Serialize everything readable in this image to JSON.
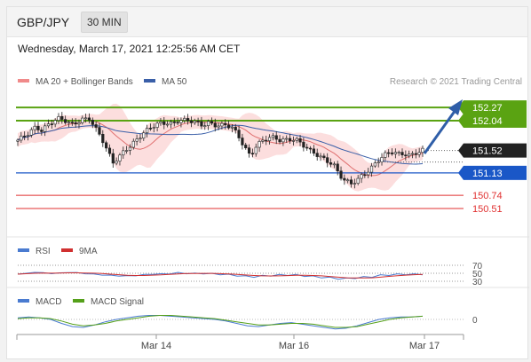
{
  "header": {
    "symbol": "GBP/JPY",
    "timeframe": "30 MIN",
    "datetime": "Wednesday, March 17, 2021 12:25:56 AM CET"
  },
  "main_panel": {
    "legend": [
      {
        "label": "MA 20 + Bollinger Bands",
        "color": "#f08a8a"
      },
      {
        "label": "MA 50",
        "color": "#3a5fa8"
      }
    ],
    "attribution": "Research © 2021 Trading Central"
  },
  "colors": {
    "resistance": "#5aa312",
    "support": "#1a57c7",
    "lower_support": "#e03030",
    "current": "#222222",
    "arrow": "#2f5ea8",
    "candle_up": "#222222",
    "candle_down": "#222222",
    "bollinger_fill": "#fbd3d3",
    "ma20": "#e07070",
    "ma50": "#3a5fa8",
    "rsi": "#4a7bd0",
    "rsi_ma": "#d03030",
    "macd": "#4a7bd0",
    "macd_signal": "#55a01a"
  },
  "rsi_panel": {
    "legend": [
      {
        "label": "RSI",
        "color": "#4a7bd0"
      },
      {
        "label": "9MA",
        "color": "#d03030"
      }
    ],
    "levels": [
      "70",
      "50",
      "30"
    ]
  },
  "macd_panel": {
    "legend": [
      {
        "label": "MACD",
        "color": "#4a7bd0"
      },
      {
        "label": "MACD Signal",
        "color": "#55a01a"
      }
    ],
    "level": "0"
  },
  "chart_data": {
    "type": "candlestick",
    "x_ticks": [
      "Mar 14",
      "Mar 16",
      "Mar 17"
    ],
    "y_range": [
      150.2,
      152.55
    ],
    "levels": [
      {
        "value": 152.27,
        "label": "152.27",
        "kind": "resistance"
      },
      {
        "value": 152.04,
        "label": "152.04",
        "kind": "resistance"
      },
      {
        "value": 151.52,
        "label": "151.52",
        "kind": "current"
      },
      {
        "value": 151.13,
        "label": "151.13",
        "kind": "support"
      },
      {
        "value": 150.74,
        "label": "150.74",
        "kind": "lower_support"
      },
      {
        "value": 150.51,
        "label": "150.51",
        "kind": "lower_support"
      }
    ],
    "close_path": [
      151.7,
      151.75,
      151.82,
      151.92,
      151.88,
      151.98,
      152.05,
      152.08,
      152.02,
      151.95,
      152.01,
      152.08,
      152.1,
      151.92,
      151.75,
      151.5,
      151.3,
      151.4,
      151.55,
      151.62,
      151.72,
      151.8,
      151.88,
      151.95,
      152.0,
      152.02,
      152.0,
      152.05,
      152.03,
      152.02,
      152.0,
      151.97,
      152.02,
      151.98,
      151.95,
      151.95,
      151.9,
      151.78,
      151.6,
      151.45,
      151.6,
      151.68,
      151.72,
      151.73,
      151.7,
      151.72,
      151.74,
      151.7,
      151.6,
      151.5,
      151.45,
      151.4,
      151.35,
      151.3,
      151.1,
      150.98,
      150.92,
      151.0,
      151.1,
      151.2,
      151.3,
      151.4,
      151.45,
      151.48,
      151.45,
      151.47,
      151.45,
      151.5,
      151.52
    ],
    "rsi_path": [
      52,
      55,
      58,
      57,
      54,
      56,
      58,
      57,
      54,
      52,
      50,
      48,
      47,
      46,
      48,
      50,
      53,
      52,
      54,
      56,
      55,
      54,
      55,
      53,
      52,
      50,
      48,
      45,
      44,
      46,
      48,
      49,
      50,
      49,
      47,
      44,
      42,
      40,
      38,
      37,
      40,
      42,
      44,
      48,
      50,
      51,
      52,
      51,
      52
    ],
    "macd_path": [
      0.02,
      0.03,
      0.02,
      0.0,
      -0.05,
      -0.09,
      -0.1,
      -0.07,
      -0.03,
      0.0,
      0.02,
      0.04,
      0.05,
      0.05,
      0.04,
      0.03,
      0.02,
      0.01,
      0.0,
      -0.02,
      -0.05,
      -0.08,
      -0.09,
      -0.07,
      -0.05,
      -0.04,
      -0.06,
      -0.08,
      -0.1,
      -0.12,
      -0.11,
      -0.08,
      -0.04,
      0.0,
      0.02,
      0.03,
      0.03,
      0.04
    ],
    "macd_signal_path": [
      0.01,
      0.02,
      0.02,
      0.01,
      -0.02,
      -0.06,
      -0.08,
      -0.07,
      -0.05,
      -0.02,
      0.0,
      0.02,
      0.04,
      0.05,
      0.05,
      0.04,
      0.03,
      0.02,
      0.01,
      -0.01,
      -0.03,
      -0.05,
      -0.07,
      -0.07,
      -0.06,
      -0.05,
      -0.05,
      -0.06,
      -0.08,
      -0.1,
      -0.1,
      -0.09,
      -0.06,
      -0.03,
      0.0,
      0.02,
      0.03,
      0.04
    ]
  }
}
